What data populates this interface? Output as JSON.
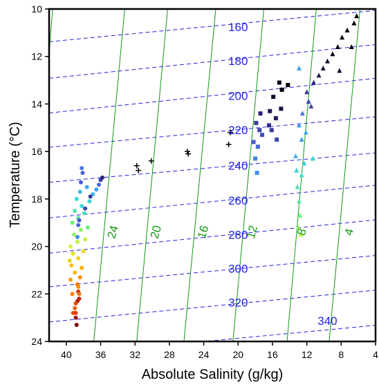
{
  "chart_data": {
    "type": "scatter",
    "xlabel": "Absolute Salinity (g/kg)",
    "ylabel": "Temperature (°C)",
    "xlim": [
      42,
      4
    ],
    "ylim": [
      24,
      10
    ],
    "x_ticks": [
      40,
      36,
      32,
      28,
      24,
      20,
      16,
      12,
      8,
      4
    ],
    "y_ticks": [
      10,
      12,
      14,
      16,
      18,
      20,
      22,
      24
    ],
    "grid": false,
    "colors": {
      "isopycnal": "#2222dd",
      "isotherm_line": "#119911",
      "point_cmap": [
        "#7b0000",
        "#d62a00",
        "#ff7f00",
        "#ffc400",
        "#d8f23d",
        "#6cf07a",
        "#3cdcd0",
        "#3f9cf0",
        "#4a5bd0",
        "#2a2378",
        "#000000"
      ]
    },
    "dashed_contours": [
      {
        "label": "160",
        "points": [
          [
            42,
            11.38
          ],
          [
            4,
            10.06
          ]
        ]
      },
      {
        "label": "180",
        "points": [
          [
            42,
            12.92
          ],
          [
            4,
            11.5
          ]
        ]
      },
      {
        "label": "200",
        "points": [
          [
            42,
            14.38
          ],
          [
            4,
            12.92
          ]
        ]
      },
      {
        "label": "220",
        "points": [
          [
            42,
            15.82
          ],
          [
            4,
            14.54
          ]
        ]
      },
      {
        "label": "240",
        "points": [
          [
            42,
            17.3
          ],
          [
            4,
            16.06
          ]
        ]
      },
      {
        "label": "260",
        "points": [
          [
            42,
            18.8
          ],
          [
            4,
            17.42
          ]
        ]
      },
      {
        "label": "280",
        "points": [
          [
            42,
            20.28
          ],
          [
            4,
            18.88
          ]
        ]
      },
      {
        "label": "300",
        "points": [
          [
            42,
            21.7
          ],
          [
            4,
            20.38
          ]
        ]
      },
      {
        "label": "320",
        "points": [
          [
            42,
            23.18
          ],
          [
            4,
            21.84
          ]
        ]
      },
      {
        "label": "340",
        "points": [
          [
            42,
            24.62
          ],
          [
            4,
            23.32
          ]
        ]
      }
    ],
    "contour_label_positions": [
      {
        "label": "160",
        "x": 20.0,
        "y": 10.8
      },
      {
        "label": "180",
        "x": 20.0,
        "y": 12.23
      },
      {
        "label": "200",
        "x": 20.0,
        "y": 13.7
      },
      {
        "label": "220",
        "x": 20.0,
        "y": 15.14
      },
      {
        "label": "240",
        "x": 20.0,
        "y": 16.63
      },
      {
        "label": "260",
        "x": 20.0,
        "y": 18.1
      },
      {
        "label": "280",
        "x": 20.0,
        "y": 19.55
      },
      {
        "label": "300",
        "x": 20.0,
        "y": 20.97
      },
      {
        "label": "320",
        "x": 20.0,
        "y": 22.4
      },
      {
        "label": "340",
        "x": 9.6,
        "y": 23.17
      }
    ],
    "solid_lines": [
      {
        "label": "24",
        "points": [
          [
            36.8,
            24
          ],
          [
            33.2,
            10
          ]
        ]
      },
      {
        "label": "20",
        "points": [
          [
            31.8,
            24
          ],
          [
            28.2,
            10
          ]
        ]
      },
      {
        "label": "16",
        "points": [
          [
            26.3,
            24
          ],
          [
            22.6,
            10
          ]
        ]
      },
      {
        "label": "12",
        "points": [
          [
            20.6,
            24
          ],
          [
            17.0,
            10
          ]
        ]
      },
      {
        "label": "8",
        "points": [
          [
            14.3,
            24
          ],
          [
            10.9,
            10
          ]
        ]
      },
      {
        "label": "4",
        "points": [
          [
            9.4,
            24
          ],
          [
            5.8,
            10
          ]
        ]
      },
      {
        "label": "",
        "points": [
          [
            42,
            11.9
          ],
          [
            41.6,
            10
          ]
        ]
      }
    ],
    "solid_line_label_positions": [
      {
        "label": "24",
        "x": 34.5,
        "y": 19.4
      },
      {
        "label": "20",
        "x": 29.5,
        "y": 19.4
      },
      {
        "label": "16",
        "x": 24.0,
        "y": 19.4
      },
      {
        "label": "12",
        "x": 18.3,
        "y": 19.4
      },
      {
        "label": "8",
        "x": 12.5,
        "y": 19.4
      },
      {
        "label": "4",
        "x": 7.0,
        "y": 19.4
      }
    ],
    "series": [
      {
        "marker": "circle",
        "points": [
          [
            38.8,
            23.3,
            0.0
          ],
          [
            38.9,
            23.0,
            0.04
          ],
          [
            38.7,
            22.3,
            0.06
          ],
          [
            38.5,
            22.2,
            0.08
          ],
          [
            38.6,
            21.9,
            0.1
          ],
          [
            39.2,
            22.8,
            0.14
          ],
          [
            38.9,
            22.4,
            0.14
          ],
          [
            39.3,
            22.0,
            0.2
          ],
          [
            38.7,
            21.6,
            0.18
          ],
          [
            39.5,
            21.4,
            0.24
          ],
          [
            38.4,
            21.3,
            0.22
          ],
          [
            39.0,
            21.1,
            0.28
          ],
          [
            38.2,
            20.9,
            0.27
          ],
          [
            39.4,
            20.8,
            0.3
          ],
          [
            38.6,
            20.5,
            0.33
          ],
          [
            39.2,
            20.3,
            0.36
          ],
          [
            38.0,
            20.2,
            0.35
          ],
          [
            39.5,
            20.0,
            0.4
          ],
          [
            38.7,
            19.8,
            0.42
          ],
          [
            37.8,
            19.7,
            0.42
          ],
          [
            39.1,
            19.5,
            0.46
          ],
          [
            38.3,
            19.3,
            0.47
          ],
          [
            37.5,
            19.2,
            0.5
          ],
          [
            39.3,
            19.0,
            0.5
          ],
          [
            38.6,
            18.8,
            0.55
          ],
          [
            37.9,
            18.6,
            0.57
          ],
          [
            39.0,
            18.5,
            0.56
          ],
          [
            38.2,
            18.3,
            0.6
          ],
          [
            37.3,
            18.1,
            0.62
          ],
          [
            38.8,
            18.0,
            0.6
          ],
          [
            36.9,
            17.8,
            0.66
          ],
          [
            38.4,
            17.7,
            0.66
          ],
          [
            36.5,
            17.6,
            0.7
          ],
          [
            37.6,
            17.5,
            0.68
          ],
          [
            36.2,
            17.4,
            0.78
          ],
          [
            38.3,
            17.3,
            0.8
          ],
          [
            38.1,
            16.9,
            0.8
          ],
          [
            38.2,
            16.7,
            0.76
          ],
          [
            36.0,
            17.2,
            0.86
          ],
          [
            35.8,
            17.1,
            0.9
          ],
          [
            37.2,
            17.9,
            0.86
          ],
          [
            37.8,
            18.4,
            0.84
          ],
          [
            38.5,
            18.9,
            0.8
          ],
          [
            38.7,
            19.6,
            0.72
          ],
          [
            38.6,
            19.1,
            0.78
          ],
          [
            38.9,
            22.8,
            0.12
          ],
          [
            39.0,
            22.6,
            0.16
          ],
          [
            38.5,
            22.0,
            0.18
          ],
          [
            38.6,
            21.7,
            0.22
          ],
          [
            39.6,
            20.6,
            0.34
          ]
        ]
      },
      {
        "marker": "square",
        "points": [
          [
            17.8,
            16.9,
            0.72
          ],
          [
            18.0,
            16.3,
            0.74
          ],
          [
            17.7,
            15.8,
            0.78
          ],
          [
            17.2,
            15.3,
            0.82
          ],
          [
            16.4,
            14.9,
            0.88
          ],
          [
            15.6,
            14.6,
            0.92
          ],
          [
            15.0,
            14.2,
            0.94
          ],
          [
            17.4,
            14.4,
            0.9
          ],
          [
            16.1,
            15.1,
            0.86
          ],
          [
            15.5,
            15.5,
            0.84
          ],
          [
            15.9,
            13.7,
            0.96
          ],
          [
            14.9,
            13.4,
            1.0
          ],
          [
            14.2,
            13.2,
            1.0
          ],
          [
            15.2,
            13.1,
            0.98
          ],
          [
            16.3,
            14.3,
            0.93
          ],
          [
            17.5,
            15.1,
            0.84
          ],
          [
            18.2,
            15.6,
            0.8
          ],
          [
            17.9,
            14.8,
            0.86
          ]
        ]
      },
      {
        "marker": "triangle",
        "points": [
          [
            13.0,
            19.2,
            0.46
          ],
          [
            12.8,
            18.7,
            0.5
          ],
          [
            12.9,
            18.1,
            0.55
          ],
          [
            13.1,
            17.5,
            0.58
          ],
          [
            12.6,
            17.0,
            0.6
          ],
          [
            12.3,
            16.5,
            0.62
          ],
          [
            13.3,
            16.2,
            0.66
          ],
          [
            12.6,
            15.5,
            0.7
          ],
          [
            12.9,
            14.9,
            0.7
          ],
          [
            12.5,
            14.4,
            0.76
          ],
          [
            11.8,
            13.9,
            0.84
          ],
          [
            12.0,
            13.5,
            0.86
          ],
          [
            11.2,
            13.1,
            0.9
          ],
          [
            10.6,
            12.8,
            0.93
          ],
          [
            10.1,
            12.5,
            0.95
          ],
          [
            9.6,
            12.2,
            0.96
          ],
          [
            9.0,
            11.9,
            0.98
          ],
          [
            8.4,
            11.6,
            0.99
          ],
          [
            8.2,
            12.6,
            0.96
          ],
          [
            7.9,
            11.2,
            1.0
          ],
          [
            7.3,
            10.9,
            1.0
          ],
          [
            6.8,
            11.6,
            1.0
          ],
          [
            6.5,
            10.6,
            1.0
          ],
          [
            6.2,
            10.3,
            1.0
          ],
          [
            11.5,
            14.1,
            0.84
          ],
          [
            12.9,
            12.5,
            0.7
          ],
          [
            11.3,
            16.3,
            0.6
          ],
          [
            13.2,
            16.8,
            0.62
          ],
          [
            12.1,
            15.2,
            0.68
          ],
          [
            12.7,
            19.5,
            0.42
          ]
        ]
      },
      {
        "marker": "plus",
        "points": [
          [
            31.8,
            16.6,
            1.0
          ],
          [
            31.6,
            16.8,
            1.0
          ],
          [
            30.1,
            16.4,
            1.0
          ],
          [
            25.9,
            16.0,
            1.0
          ],
          [
            25.8,
            16.1,
            1.0
          ],
          [
            20.9,
            15.2,
            1.0
          ],
          [
            21.1,
            15.7,
            1.0
          ]
        ]
      }
    ]
  }
}
